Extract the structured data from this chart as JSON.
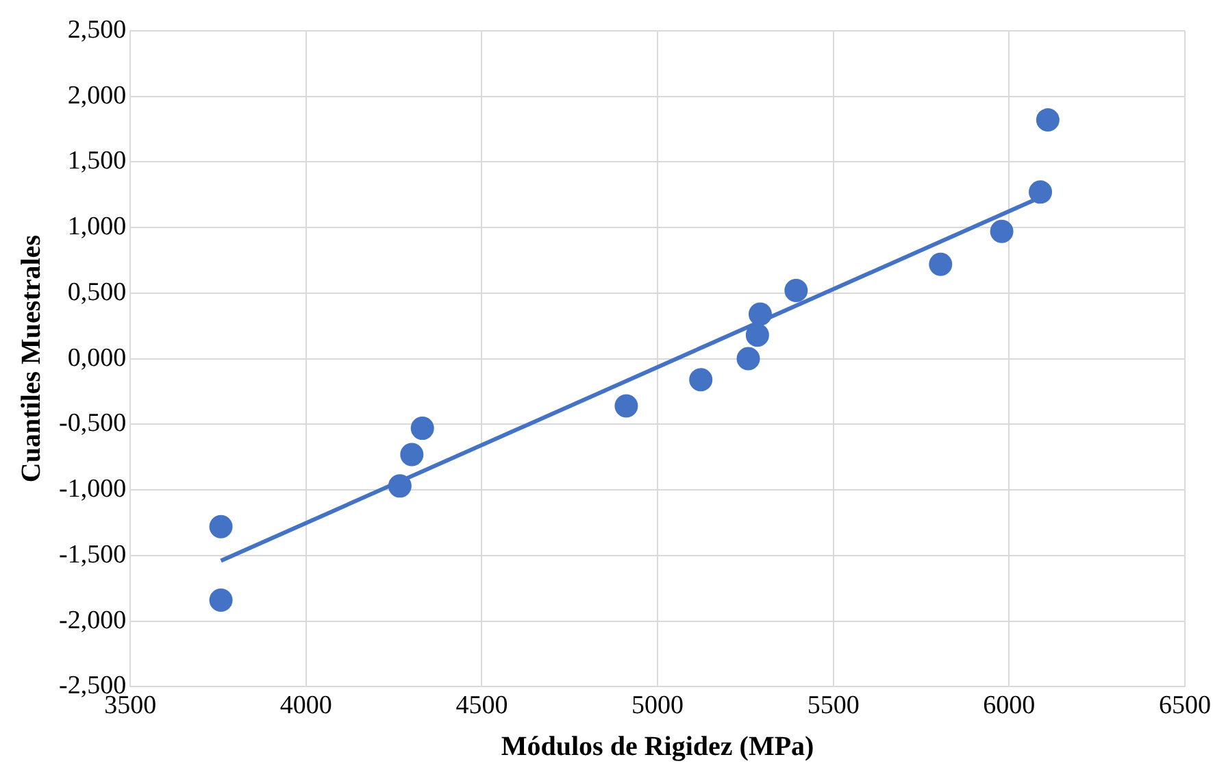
{
  "chart_data": {
    "type": "scatter",
    "xlabel": "Módulos de Rigidez (MPa)",
    "ylabel": "Cuantiles Muestrales",
    "xlim": [
      3500,
      6500
    ],
    "xticks": [
      3500,
      4000,
      4500,
      5000,
      5500,
      6000,
      6500
    ],
    "ylim": [
      -2.5,
      2.5
    ],
    "yticks": [
      {
        "value": -2.5,
        "label": "-2,500"
      },
      {
        "value": -2,
        "label": "-2,000"
      },
      {
        "value": -1.5,
        "label": "-1,500"
      },
      {
        "value": -1,
        "label": "-1,000"
      },
      {
        "value": -0.5,
        "label": "-0,500"
      },
      {
        "value": 0,
        "label": "0,000"
      },
      {
        "value": 0.5,
        "label": "0,500"
      },
      {
        "value": 1,
        "label": "1,000"
      },
      {
        "value": 1.5,
        "label": "1,500"
      },
      {
        "value": 2,
        "label": "2,000"
      },
      {
        "value": 2.5,
        "label": "2,500"
      }
    ],
    "grid": true,
    "marker": "circle",
    "series": [
      {
        "color": "#4472c4",
        "x": [
          3758,
          3758,
          4267,
          4301,
          4331,
          4911,
          5123,
          5258,
          5284,
          5292,
          5394,
          5805,
          5979,
          6089,
          6110
        ],
        "values": [
          -1.28,
          -1.84,
          -0.97,
          -0.73,
          -0.53,
          -0.36,
          -0.16,
          0.0,
          0.18,
          0.34,
          0.52,
          0.72,
          0.97,
          1.27,
          1.82
        ]
      },
      {
        "type": "line",
        "marker": "none",
        "color": "#4472c4",
        "x": [
          3758,
          6089
        ],
        "values": [
          -1.54,
          1.23
        ]
      }
    ]
  }
}
